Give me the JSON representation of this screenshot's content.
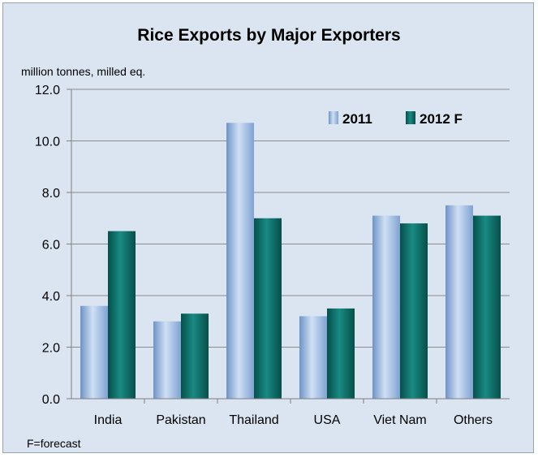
{
  "chart_data": {
    "type": "bar",
    "title": "Rice Exports by Major Exporters",
    "ylabel": "million tonnes, milled eq.",
    "xlabel": "",
    "note": "F=forecast",
    "ylim": [
      0,
      12
    ],
    "yticks": [
      "0.0",
      "2.0",
      "4.0",
      "6.0",
      "8.0",
      "10.0",
      "12.0"
    ],
    "ytick_values": [
      0,
      2,
      4,
      6,
      8,
      10,
      12
    ],
    "categories": [
      "India",
      "Pakistan",
      "Thailand",
      "USA",
      "Viet Nam",
      "Others"
    ],
    "series": [
      {
        "name": "2011",
        "values": [
          3.6,
          3.0,
          10.7,
          3.2,
          7.1,
          7.5
        ],
        "color": "#8fb3e0"
      },
      {
        "name": "2012 F",
        "values": [
          6.5,
          3.3,
          7.0,
          3.5,
          6.8,
          7.1
        ],
        "color": "#0f6b66"
      }
    ],
    "grid": true,
    "legend_position": "top-right"
  }
}
